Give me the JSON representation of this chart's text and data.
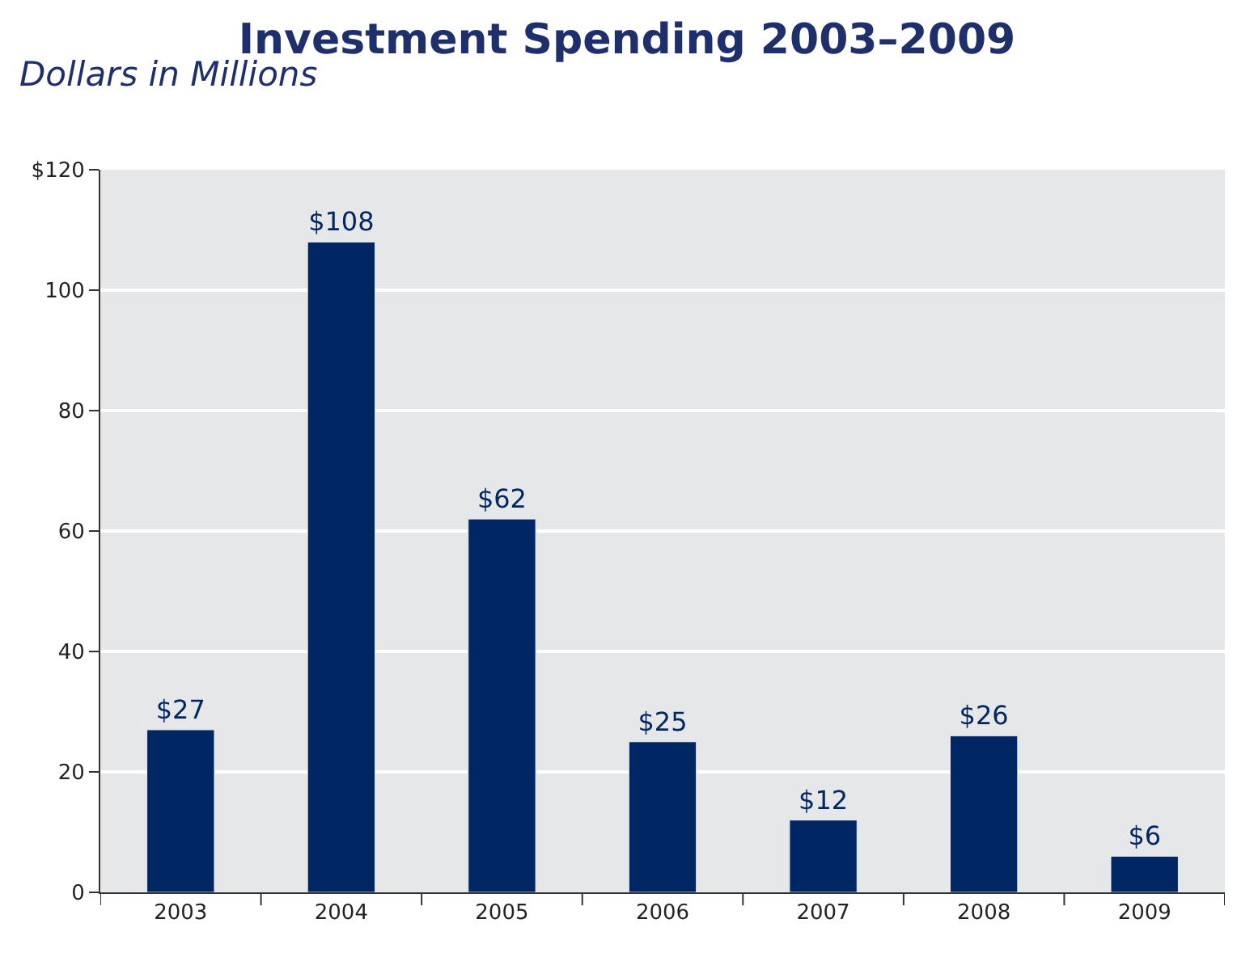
{
  "chart_data": {
    "type": "bar",
    "title": "Investment Spending 2003–2009",
    "subtitle": "Dollars in Millions",
    "categories": [
      "2003",
      "2004",
      "2005",
      "2006",
      "2007",
      "2008",
      "2009"
    ],
    "values": [
      27,
      108,
      62,
      25,
      12,
      26,
      6
    ],
    "value_labels": [
      "$27",
      "$108",
      "$62",
      "$25",
      "$12",
      "$26",
      "$6"
    ],
    "color": "#002663",
    "ylim": [
      0,
      120
    ],
    "yticks": [
      0,
      20,
      40,
      60,
      80,
      100,
      {
        "value": 120,
        "label": "$120"
      }
    ],
    "grid": "y",
    "legend": false
  }
}
